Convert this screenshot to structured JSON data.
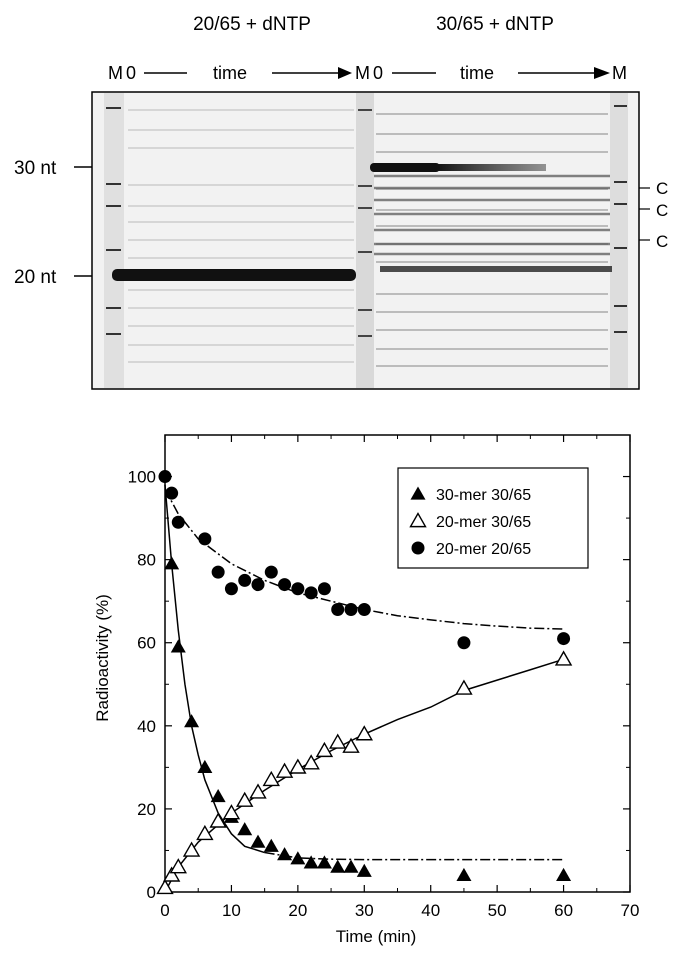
{
  "gel": {
    "title_left": "20/65 + dNTP",
    "title_right": "30/65 + dNTP",
    "lane_header": {
      "m": "M",
      "zero": "0",
      "time": "time",
      "m_end": "M"
    },
    "size_markers": [
      "30 nt",
      "20 nt"
    ],
    "c_labels": [
      "C",
      "C",
      "C"
    ]
  },
  "chart_data": {
    "type": "scatter",
    "xlabel": "Time (min)",
    "ylabel": "Radioactivity (%)",
    "xlim": [
      0,
      70
    ],
    "ylim": [
      0,
      110
    ],
    "xticks": [
      0,
      10,
      20,
      30,
      40,
      50,
      60,
      70
    ],
    "yticks": [
      0,
      20,
      40,
      60,
      80,
      100
    ],
    "legend_position": "top-right",
    "grid": false,
    "series": [
      {
        "name": "30-mer 30/65",
        "marker": "filled-triangle",
        "x": [
          1,
          2,
          4,
          6,
          8,
          10,
          12,
          14,
          16,
          18,
          20,
          22,
          24,
          26,
          28,
          30,
          45,
          60
        ],
        "y": [
          79,
          59,
          41,
          30,
          23,
          18,
          15,
          12,
          11,
          9,
          8,
          7,
          7,
          6,
          6,
          5,
          4,
          4
        ]
      },
      {
        "name": "20-mer 30/65",
        "marker": "open-triangle",
        "x": [
          0,
          1,
          2,
          4,
          6,
          8,
          10,
          12,
          14,
          16,
          18,
          20,
          22,
          24,
          26,
          28,
          30,
          45,
          60
        ],
        "y": [
          1,
          4,
          6,
          10,
          14,
          17,
          19,
          22,
          24,
          27,
          29,
          30,
          31,
          34,
          36,
          35,
          38,
          49,
          56
        ]
      },
      {
        "name": "20-mer 20/65",
        "marker": "filled-circle",
        "x": [
          0,
          1,
          2,
          6,
          8,
          10,
          12,
          14,
          16,
          18,
          20,
          22,
          24,
          26,
          28,
          30,
          45,
          60
        ],
        "y": [
          100,
          96,
          89,
          85,
          77,
          73,
          75,
          74,
          77,
          74,
          73,
          72,
          73,
          68,
          68,
          68,
          60,
          61
        ]
      }
    ],
    "fits": [
      {
        "series": "30-mer 30/65",
        "style": "solid-to-dashed",
        "x": [
          0,
          1,
          2,
          3,
          4,
          5,
          6,
          8,
          10,
          12,
          15,
          20,
          25,
          30,
          40,
          50,
          60
        ],
        "y": [
          98,
          79,
          63,
          50,
          40,
          33,
          27,
          19,
          14,
          11,
          9.5,
          8.2,
          7.9,
          7.8,
          7.8,
          7.8,
          7.8
        ]
      },
      {
        "series": "20-mer 30/65",
        "style": "solid",
        "x": [
          0,
          2,
          5,
          10,
          15,
          20,
          25,
          30,
          35,
          40,
          45,
          50,
          55,
          60
        ],
        "y": [
          0,
          6,
          12,
          19,
          24.5,
          29.5,
          34,
          38,
          41.5,
          44.5,
          48.5,
          51,
          53.5,
          56
        ]
      },
      {
        "series": "20-mer 20/65",
        "style": "dashed",
        "x": [
          0,
          2,
          5,
          10,
          15,
          20,
          25,
          30,
          35,
          40,
          45,
          50,
          55,
          60
        ],
        "y": [
          97,
          91,
          85,
          79,
          75,
          72,
          70,
          68,
          66.5,
          65.5,
          64.6,
          64,
          63.5,
          63.3
        ]
      }
    ]
  }
}
